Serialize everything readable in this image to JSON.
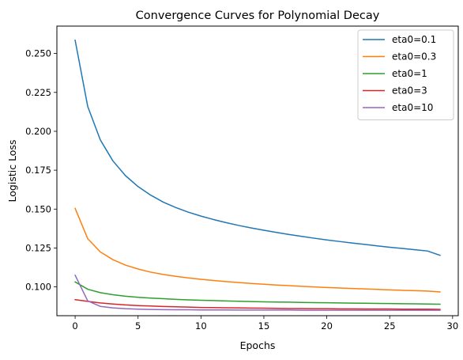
{
  "chart_data": {
    "type": "line",
    "title": "Convergence Curves for Polynomial Decay",
    "xlabel": "Epochs",
    "ylabel": "Logistic Loss",
    "xlim": [
      -1.45,
      30.45
    ],
    "ylim": [
      0.0815,
      0.2676
    ],
    "xticks": [
      0,
      5,
      10,
      15,
      20,
      25,
      30
    ],
    "yticks": [
      0.1,
      0.125,
      0.15,
      0.175,
      0.2,
      0.225,
      0.25
    ],
    "xtick_labels": [
      "0",
      "5",
      "10",
      "15",
      "20",
      "25",
      "30"
    ],
    "ytick_labels": [
      "0.100",
      "0.125",
      "0.150",
      "0.175",
      "0.200",
      "0.225",
      "0.250"
    ],
    "grid": false,
    "legend_position": "top-right",
    "x": [
      0,
      1,
      2,
      3,
      4,
      5,
      6,
      7,
      8,
      9,
      10,
      11,
      12,
      13,
      14,
      15,
      16,
      17,
      18,
      19,
      20,
      21,
      22,
      23,
      24,
      25,
      26,
      27,
      28,
      29
    ],
    "series": [
      {
        "name": "eta0=0.1",
        "color": "#1f77b4",
        "values": [
          0.2585,
          0.216,
          0.1945,
          0.181,
          0.1715,
          0.1645,
          0.159,
          0.1545,
          0.151,
          0.148,
          0.1455,
          0.1433,
          0.1413,
          0.1395,
          0.1379,
          0.1364,
          0.135,
          0.1337,
          0.1325,
          0.1313,
          0.1302,
          0.1292,
          0.1282,
          0.1273,
          0.1264,
          0.1255,
          0.1247,
          0.1239,
          0.1231,
          0.1203
        ]
      },
      {
        "name": "eta0=0.3",
        "color": "#ff7f0e",
        "values": [
          0.1505,
          0.131,
          0.1225,
          0.1175,
          0.114,
          0.1115,
          0.1095,
          0.108,
          0.1068,
          0.1058,
          0.1049,
          0.1041,
          0.1034,
          0.1028,
          0.1022,
          0.1017,
          0.1012,
          0.1008,
          0.1004,
          0.1,
          0.0996,
          0.0993,
          0.099,
          0.0987,
          0.0984,
          0.0981,
          0.0978,
          0.0976,
          0.0973,
          0.0968
        ]
      },
      {
        "name": "eta0=1",
        "color": "#2ca02c",
        "values": [
          0.1032,
          0.0985,
          0.0963,
          0.095,
          0.094,
          0.0933,
          0.0928,
          0.0924,
          0.092,
          0.0917,
          0.0914,
          0.0912,
          0.091,
          0.0908,
          0.0906,
          0.0904,
          0.0903,
          0.0902,
          0.09,
          0.0899,
          0.0898,
          0.0897,
          0.0896,
          0.0895,
          0.0894,
          0.0893,
          0.0892,
          0.0891,
          0.089,
          0.0889
        ]
      },
      {
        "name": "eta0=3",
        "color": "#d62728",
        "values": [
          0.0918,
          0.0907,
          0.0897,
          0.089,
          0.0884,
          0.088,
          0.0877,
          0.0874,
          0.0872,
          0.087,
          0.0868,
          0.0867,
          0.0866,
          0.0865,
          0.0864,
          0.0863,
          0.0862,
          0.0861,
          0.0861,
          0.086,
          0.086,
          0.0859,
          0.0859,
          0.0858,
          0.0858,
          0.0858,
          0.0857,
          0.0857,
          0.0857,
          0.0856
        ]
      },
      {
        "name": "eta0=10",
        "color": "#9467bd",
        "values": [
          0.1075,
          0.091,
          0.0875,
          0.0865,
          0.086,
          0.0857,
          0.0855,
          0.0854,
          0.0853,
          0.0853,
          0.0852,
          0.0852,
          0.0852,
          0.0851,
          0.0851,
          0.0851,
          0.0851,
          0.0851,
          0.085,
          0.085,
          0.085,
          0.085,
          0.085,
          0.085,
          0.085,
          0.085,
          0.085,
          0.085,
          0.085,
          0.085
        ]
      }
    ]
  }
}
